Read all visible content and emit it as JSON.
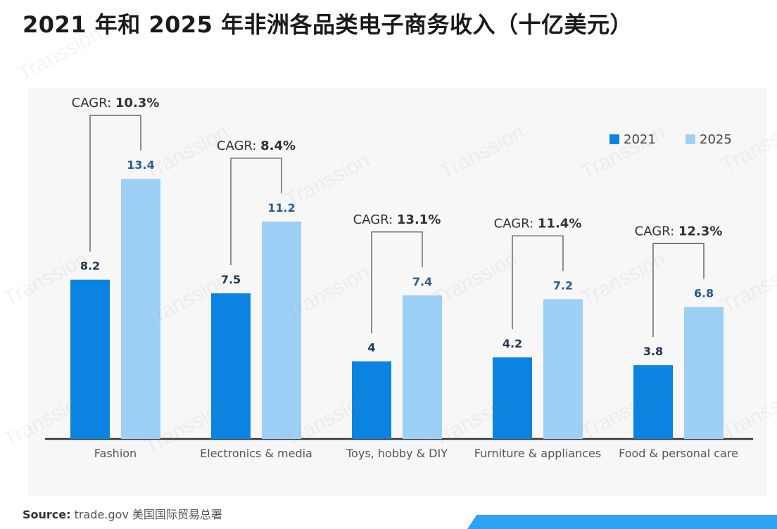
{
  "title": "2021 年和 2025 年非洲各品类电子商务收入（十亿美元）",
  "source_label": "Source:",
  "source_text": "trade.gov 美国国际贸易总署",
  "watermark": "Transsion",
  "chart_data": {
    "type": "bar",
    "title": "2021 年和 2025 年非洲各品类电子商务收入（十亿美元）",
    "xlabel": "",
    "ylabel": "",
    "ylim": [
      0,
      14
    ],
    "legend_position": "top-right",
    "categories": [
      "Fashion",
      "Electronics & media",
      "Toys, hobby & DIY",
      "Furniture & appliances",
      "Food & personal care"
    ],
    "series": [
      {
        "name": "2021",
        "color": "#0a84e0",
        "values": [
          8.2,
          7.5,
          4,
          4.2,
          3.8
        ],
        "labels": [
          "8.2",
          "7.5",
          "4",
          "4.2",
          "3.8"
        ]
      },
      {
        "name": "2025",
        "color": "#9dd0f7",
        "values": [
          13.4,
          11.2,
          7.4,
          7.2,
          6.8
        ],
        "labels": [
          "13.4",
          "11.2",
          "7.4",
          "7.2",
          "6.8"
        ]
      }
    ],
    "cagr_prefix": "CAGR:",
    "cagr": [
      "10.3%",
      "8.4%",
      "13.1%",
      "11.4%",
      "12.3%"
    ]
  }
}
